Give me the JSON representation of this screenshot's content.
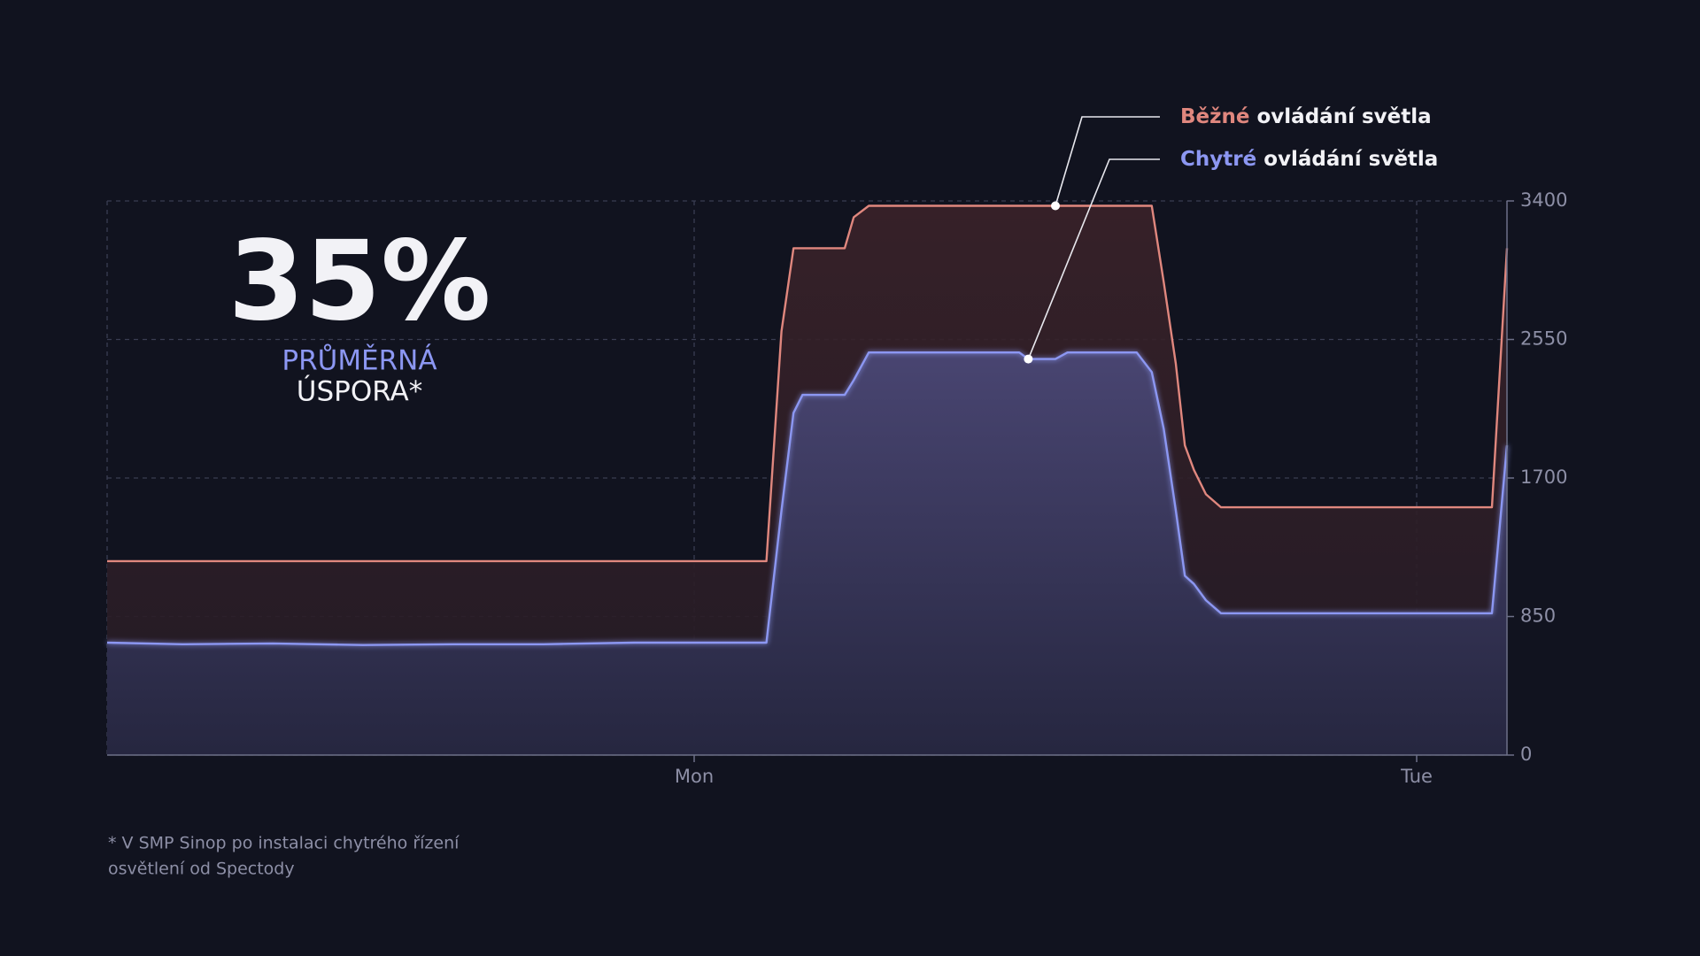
{
  "chart_data": {
    "type": "line",
    "x": [
      -19.5,
      -17,
      -14,
      -11,
      -8,
      -5,
      -2,
      0,
      2.4,
      2.9,
      3.3,
      3.6,
      5.0,
      5.3,
      5.8,
      8,
      10.8,
      11.1,
      12,
      12.4,
      14.7,
      15.2,
      15.6,
      16.0,
      16.3,
      16.6,
      17.0,
      17.5,
      20,
      24,
      26.5,
      27
    ],
    "series": [
      {
        "name": "Běžné ovládání světla",
        "color": "#e0877e",
        "values": [
          1190,
          1190,
          1190,
          1190,
          1190,
          1190,
          1190,
          1190,
          1190,
          2600,
          3110,
          3110,
          3110,
          3300,
          3370,
          3370,
          3370,
          3370,
          3370,
          3370,
          3370,
          3370,
          2900,
          2400,
          1900,
          1750,
          1600,
          1520,
          1520,
          1520,
          1520,
          3110
        ]
      },
      {
        "name": "Chytré ovládání světla",
        "color": "#8c97f2",
        "values": [
          690,
          680,
          685,
          675,
          680,
          680,
          690,
          690,
          690,
          1500,
          2100,
          2210,
          2210,
          2300,
          2470,
          2470,
          2470,
          2430,
          2430,
          2470,
          2470,
          2350,
          2000,
          1500,
          1100,
          1050,
          950,
          870,
          870,
          870,
          870,
          1900
        ]
      }
    ],
    "xlim": [
      -19.5,
      27
    ],
    "xticks": [
      {
        "value": 0,
        "label": "Mon"
      },
      {
        "value": 24,
        "label": "Tue"
      }
    ],
    "ylim": [
      0,
      3400
    ],
    "yticks": [
      0,
      850,
      1700,
      2550,
      3400
    ],
    "y_axis_side": "right",
    "grid": true,
    "annotations": {
      "headline": "35%",
      "line_1": "PRŮMĚRNÁ",
      "line_2": "ÚSPORA*"
    },
    "footnote": [
      "* V SMP Sinop po instalaci chytrého řízení",
      "osvětlení od Spectody"
    ]
  }
}
